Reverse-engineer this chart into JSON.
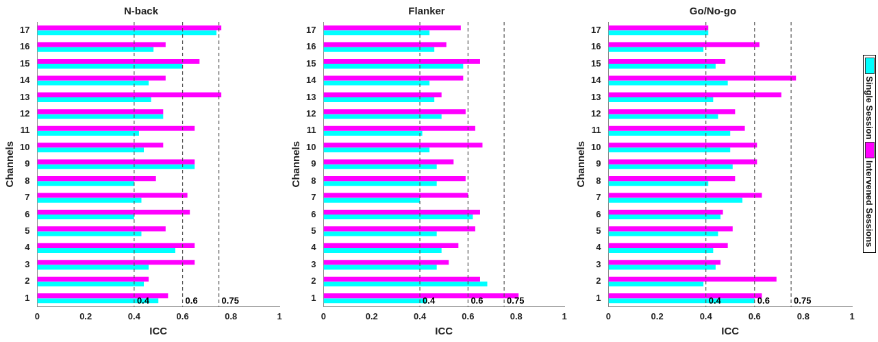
{
  "chart_data": [
    {
      "type": "bar",
      "orientation": "horizontal",
      "title": "N-back",
      "xlabel": "ICC",
      "ylabel": "Channels",
      "categories": [
        "17",
        "16",
        "15",
        "14",
        "13",
        "12",
        "11",
        "10",
        "9",
        "8",
        "7",
        "6",
        "5",
        "4",
        "3",
        "2",
        "1"
      ],
      "xlim": [
        0,
        1
      ],
      "xticks": [
        0,
        0.2,
        0.4,
        0.6,
        0.8,
        1
      ],
      "grid": false,
      "legend": "right",
      "series": [
        {
          "name": "Single Session",
          "color": "#00ffff",
          "values": [
            0.74,
            0.48,
            0.6,
            0.46,
            0.47,
            0.52,
            0.42,
            0.44,
            0.65,
            0.4,
            0.43,
            0.4,
            0.43,
            0.57,
            0.46,
            0.44,
            0.5
          ]
        },
        {
          "name": "Intervened Sessions",
          "color": "#ff00ff",
          "values": [
            0.76,
            0.53,
            0.67,
            0.53,
            0.76,
            0.52,
            0.65,
            0.52,
            0.65,
            0.49,
            0.62,
            0.63,
            0.53,
            0.65,
            0.65,
            0.46,
            0.54
          ]
        }
      ],
      "ref_lines": [
        {
          "axis": "x",
          "value": 0.4,
          "label": "0.4",
          "line_style": "dashed"
        },
        {
          "axis": "x",
          "value": 0.6,
          "label": "0.6",
          "line_style": "dashed"
        },
        {
          "axis": "x",
          "value": 0.75,
          "label": "0.75",
          "line_style": "dashed"
        }
      ]
    },
    {
      "type": "bar",
      "orientation": "horizontal",
      "title": "Flanker",
      "xlabel": "ICC",
      "ylabel": "Channels",
      "categories": [
        "17",
        "16",
        "15",
        "14",
        "13",
        "12",
        "11",
        "10",
        "9",
        "8",
        "7",
        "6",
        "5",
        "4",
        "3",
        "2",
        "1"
      ],
      "xlim": [
        0,
        1
      ],
      "xticks": [
        0,
        0.2,
        0.4,
        0.6,
        0.8,
        1
      ],
      "grid": false,
      "legend": "right",
      "series": [
        {
          "name": "Single Session",
          "color": "#00ffff",
          "values": [
            0.44,
            0.46,
            0.58,
            0.44,
            0.46,
            0.49,
            0.41,
            0.44,
            0.47,
            0.47,
            0.4,
            0.62,
            0.47,
            0.49,
            0.47,
            0.68,
            0.43
          ]
        },
        {
          "name": "Intervened Sessions",
          "color": "#ff00ff",
          "values": [
            0.57,
            0.51,
            0.65,
            0.58,
            0.49,
            0.59,
            0.63,
            0.66,
            0.54,
            0.59,
            0.6,
            0.65,
            0.63,
            0.56,
            0.52,
            0.65,
            0.81
          ]
        }
      ],
      "ref_lines": [
        {
          "axis": "x",
          "value": 0.4,
          "label": "0.4",
          "line_style": "dashed"
        },
        {
          "axis": "x",
          "value": 0.6,
          "label": "0.6",
          "line_style": "dashed"
        },
        {
          "axis": "x",
          "value": 0.75,
          "label": "0.75",
          "line_style": "dashed"
        }
      ]
    },
    {
      "type": "bar",
      "orientation": "horizontal",
      "title": "Go/No-go",
      "xlabel": "ICC",
      "ylabel": "Channels",
      "categories": [
        "17",
        "16",
        "15",
        "14",
        "13",
        "12",
        "11",
        "10",
        "9",
        "8",
        "7",
        "6",
        "5",
        "4",
        "3",
        "2",
        "1"
      ],
      "xlim": [
        0,
        1
      ],
      "xticks": [
        0,
        0.2,
        0.4,
        0.6,
        0.8,
        1
      ],
      "grid": false,
      "legend": "right",
      "series": [
        {
          "name": "Single Session",
          "color": "#00ffff",
          "values": [
            0.41,
            0.39,
            0.44,
            0.49,
            0.43,
            0.45,
            0.5,
            0.5,
            0.51,
            0.41,
            0.55,
            0.46,
            0.45,
            0.43,
            0.44,
            0.39,
            0.6
          ]
        },
        {
          "name": "Intervened Sessions",
          "color": "#ff00ff",
          "values": [
            0.41,
            0.62,
            0.48,
            0.77,
            0.71,
            0.52,
            0.56,
            0.61,
            0.61,
            0.52,
            0.63,
            0.47,
            0.51,
            0.49,
            0.46,
            0.69,
            0.63
          ]
        }
      ],
      "ref_lines": [
        {
          "axis": "x",
          "value": 0.4,
          "label": "0.4",
          "line_style": "dashed"
        },
        {
          "axis": "x",
          "value": 0.6,
          "label": "0.6",
          "line_style": "dashed"
        },
        {
          "axis": "x",
          "value": 0.75,
          "label": "0.75",
          "line_style": "dashed"
        }
      ]
    }
  ]
}
